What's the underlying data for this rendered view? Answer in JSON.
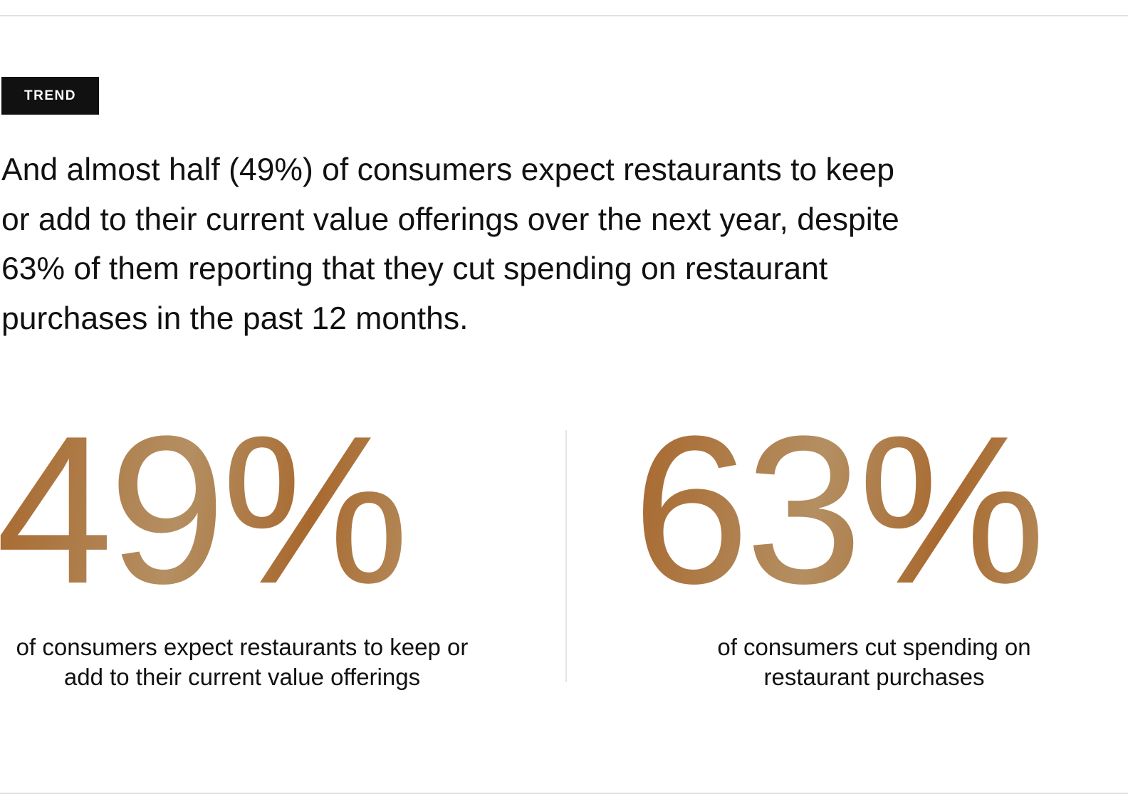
{
  "tag": {
    "label": "TREND"
  },
  "headline": {
    "text": "And almost half (49%) of consumers expect restaurants to keep or add to their current value offerings over the next year, despite 63% of them reporting that they cut spending on restaurant purchases in the past 12 months."
  },
  "stats": [
    {
      "value": "49%",
      "caption": "of consumers expect restaurants to keep or add to their current value offerings"
    },
    {
      "value": "63%",
      "caption": "of consumers cut spending on restaurant purchases"
    }
  ],
  "colors": {
    "tag_background": "#111111",
    "stat_gradient_dark": "#a8672d",
    "stat_gradient_light": "#b48f62",
    "rule": "#e2e2e2"
  }
}
